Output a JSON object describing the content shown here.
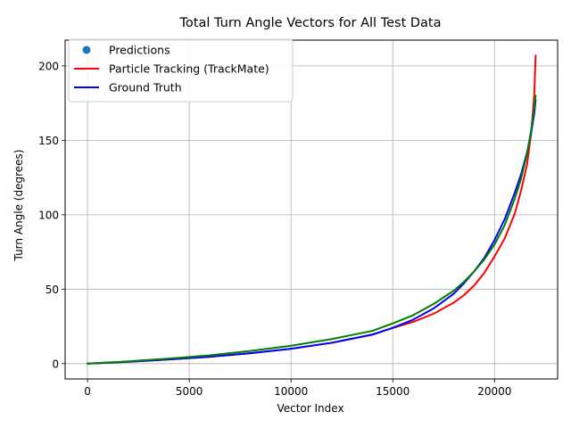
{
  "chart_data": {
    "type": "line",
    "title": "Total Turn Angle Vectors for All Test Data",
    "xlabel": "Vector Index",
    "ylabel": "Turn Angle (degrees)",
    "xlim": [
      -1100,
      23100
    ],
    "ylim": [
      -10.3,
      217.3
    ],
    "xticks": [
      0,
      5000,
      10000,
      15000,
      20000
    ],
    "yticks": [
      0,
      50,
      100,
      150,
      200
    ],
    "grid": true,
    "legend_position": "top-left",
    "series": [
      {
        "name": "Predictions",
        "kind": "scatter",
        "color": "#1f77b4",
        "x": [],
        "y": []
      },
      {
        "name": "Particle Tracking (TrackMate)",
        "kind": "line",
        "color": "#ff0000",
        "x": [
          0,
          2000,
          4000,
          6000,
          8000,
          10000,
          12000,
          14000,
          15000,
          16000,
          17000,
          18000,
          18500,
          19000,
          19500,
          20000,
          20500,
          21000,
          21300,
          21600,
          21800,
          21950,
          22020
        ],
        "y": [
          0,
          1.2,
          2.8,
          4.6,
          7,
          10,
          14,
          19.5,
          24,
          28,
          33.5,
          41,
          46,
          52.5,
          61,
          72,
          84,
          101,
          116,
          134,
          155,
          180,
          207
        ]
      },
      {
        "name": "Ground Truth",
        "kind": "line",
        "color": "#0000ff",
        "x": [
          0,
          2000,
          4000,
          6000,
          8000,
          10000,
          12000,
          14000,
          15000,
          16000,
          17000,
          18000,
          18500,
          19000,
          19500,
          20000,
          20500,
          21000,
          21300,
          21600,
          21800,
          21950,
          22020
        ],
        "y": [
          0,
          1.2,
          2.8,
          4.6,
          7,
          10,
          14,
          19.5,
          24,
          29.5,
          37,
          47,
          54,
          62,
          71,
          83,
          97,
          115,
          127,
          142,
          155,
          168,
          177
        ]
      },
      {
        "name": "",
        "kind": "line",
        "color": "#008000",
        "x": [
          0,
          2000,
          4000,
          6000,
          8000,
          10000,
          12000,
          14000,
          15000,
          16000,
          17000,
          18000,
          18500,
          19000,
          19500,
          20000,
          20500,
          21000,
          21300,
          21600,
          21800,
          21950,
          22020
        ],
        "y": [
          0,
          1.5,
          3.4,
          5.6,
          8.5,
          12,
          16.5,
          22,
          27,
          32.5,
          40,
          49,
          55,
          62,
          70,
          80,
          93,
          111,
          124,
          141,
          157,
          172,
          180
        ]
      }
    ]
  }
}
